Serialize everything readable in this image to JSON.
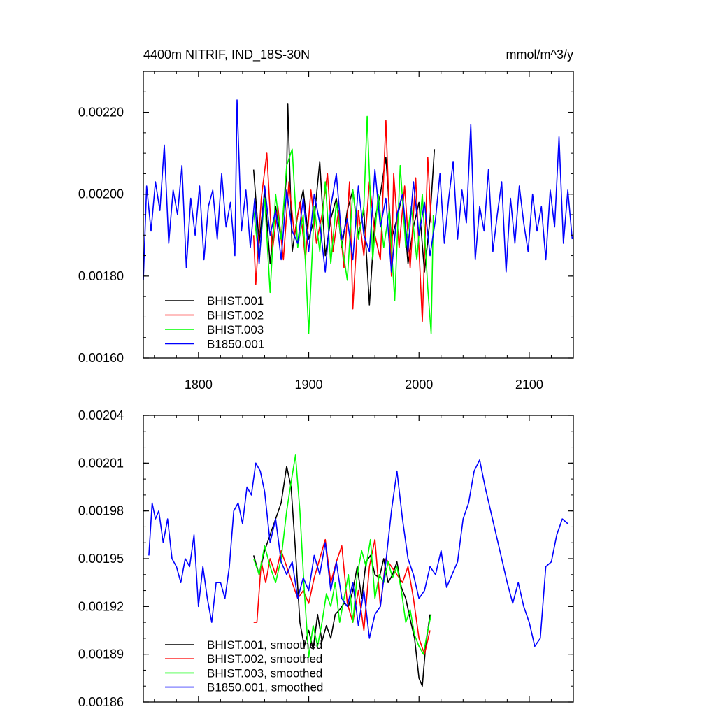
{
  "chart_data": [
    {
      "type": "line",
      "title": "4400m NITRIF, IND_18S-30N",
      "units": "mmol/m^3/y",
      "xlim": [
        1750,
        2140
      ],
      "ylim": [
        0.0016,
        0.0023
      ],
      "x_ticks": [
        "1800",
        "1900",
        "2000",
        "2100"
      ],
      "y_ticks": [
        "0.00160",
        "0.00180",
        "0.00200",
        "0.00220"
      ],
      "legend_position": "bottom-left",
      "series": [
        {
          "name": "BHIST.001",
          "color": "#000000",
          "x": [
            1850,
            1855,
            1860,
            1865,
            1870,
            1875,
            1880,
            1881,
            1885,
            1890,
            1895,
            1900,
            1905,
            1910,
            1915,
            1920,
            1925,
            1930,
            1935,
            1940,
            1945,
            1950,
            1955,
            1960,
            1965,
            1970,
            1975,
            1980,
            1985,
            1990,
            1995,
            2000,
            2005,
            2010,
            2014
          ],
          "y": [
            0.00206,
            0.00188,
            0.00201,
            0.00183,
            0.00197,
            0.00189,
            0.00205,
            0.00222,
            0.00186,
            0.00195,
            0.00201,
            0.00189,
            0.00194,
            0.00208,
            0.00185,
            0.00194,
            0.00199,
            0.00187,
            0.00196,
            0.00201,
            0.0019,
            0.00196,
            0.00173,
            0.00194,
            0.002,
            0.00209,
            0.00189,
            0.00194,
            0.002,
            0.00183,
            0.00192,
            0.00198,
            0.00181,
            0.00194,
            0.00211
          ]
        },
        {
          "name": "BHIST.002",
          "color": "#ff0000",
          "x": [
            1850,
            1852,
            1857,
            1862,
            1867,
            1872,
            1877,
            1882,
            1887,
            1892,
            1897,
            1902,
            1907,
            1912,
            1917,
            1922,
            1927,
            1932,
            1937,
            1940,
            1945,
            1950,
            1955,
            1960,
            1965,
            1970,
            1975,
            1977,
            1982,
            1987,
            1992,
            1997,
            2003,
            2008,
            2011
          ],
          "y": [
            0.0019,
            0.00178,
            0.00199,
            0.0021,
            0.00186,
            0.00197,
            0.00184,
            0.00203,
            0.0019,
            0.00198,
            0.00184,
            0.00201,
            0.00188,
            0.00195,
            0.00205,
            0.00186,
            0.00196,
            0.00182,
            0.00203,
            0.00172,
            0.00196,
            0.00185,
            0.00203,
            0.0019,
            0.00184,
            0.00218,
            0.0018,
            0.00205,
            0.00187,
            0.00202,
            0.00182,
            0.00204,
            0.00169,
            0.00209,
            0.00193
          ]
        },
        {
          "name": "BHIST.003",
          "color": "#00ff00",
          "x": [
            1850,
            1855,
            1860,
            1865,
            1870,
            1875,
            1880,
            1885,
            1890,
            1895,
            1900,
            1905,
            1910,
            1915,
            1920,
            1925,
            1930,
            1935,
            1940,
            1945,
            1950,
            1953,
            1958,
            1963,
            1968,
            1973,
            1978,
            1983,
            1988,
            1993,
            1998,
            2003,
            2008,
            2011,
            2013
          ],
          "y": [
            0.00196,
            0.00184,
            0.00199,
            0.00176,
            0.002,
            0.00189,
            0.00207,
            0.00211,
            0.00187,
            0.00195,
            0.00166,
            0.00197,
            0.00186,
            0.00203,
            0.00183,
            0.00198,
            0.00188,
            0.00179,
            0.00201,
            0.00189,
            0.00197,
            0.00219,
            0.00184,
            0.002,
            0.00187,
            0.00196,
            0.00174,
            0.00207,
            0.00187,
            0.00197,
            0.00184,
            0.002,
            0.00177,
            0.00166,
            0.00195
          ]
        },
        {
          "name": "B1850.001",
          "color": "#0000ff",
          "x": [
            1750,
            1753,
            1757,
            1761,
            1765,
            1769,
            1773,
            1777,
            1781,
            1785,
            1789,
            1793,
            1797,
            1801,
            1805,
            1809,
            1813,
            1817,
            1821,
            1825,
            1829,
            1833,
            1835,
            1839,
            1843,
            1847,
            1851,
            1855,
            1860,
            1865,
            1870,
            1875,
            1880,
            1885,
            1890,
            1895,
            1900,
            1905,
            1910,
            1915,
            1920,
            1925,
            1930,
            1935,
            1940,
            1945,
            1950,
            1955,
            1960,
            1965,
            1970,
            1975,
            1980,
            1985,
            1990,
            1995,
            2000,
            2005,
            2010,
            2015,
            2019,
            2023,
            2027,
            2031,
            2035,
            2039,
            2043,
            2047,
            2051,
            2055,
            2059,
            2063,
            2067,
            2071,
            2075,
            2079,
            2083,
            2087,
            2091,
            2095,
            2099,
            2103,
            2107,
            2111,
            2115,
            2119,
            2123,
            2127,
            2131,
            2135,
            2139
          ],
          "y": [
            0.00179,
            0.00202,
            0.00191,
            0.00203,
            0.00196,
            0.00212,
            0.00188,
            0.00201,
            0.00195,
            0.00207,
            0.00182,
            0.00199,
            0.0019,
            0.00202,
            0.00184,
            0.00197,
            0.00201,
            0.00189,
            0.00205,
            0.00192,
            0.00198,
            0.00185,
            0.00223,
            0.00191,
            0.00201,
            0.00187,
            0.00199,
            0.00183,
            0.00202,
            0.0019,
            0.00196,
            0.00184,
            0.00201,
            0.00191,
            0.00188,
            0.00199,
            0.00186,
            0.002,
            0.00193,
            0.00181,
            0.00197,
            0.00205,
            0.00189,
            0.00194,
            0.00184,
            0.00202,
            0.0019,
            0.00186,
            0.00206,
            0.00192,
            0.00199,
            0.00181,
            0.00195,
            0.002,
            0.00186,
            0.00203,
            0.0019,
            0.00198,
            0.00185,
            0.00194,
            0.00205,
            0.00188,
            0.00199,
            0.00208,
            0.00189,
            0.00201,
            0.00193,
            0.00217,
            0.00184,
            0.00197,
            0.00191,
            0.00206,
            0.00186,
            0.00195,
            0.00203,
            0.00181,
            0.00199,
            0.00188,
            0.00202,
            0.00193,
            0.00186,
            0.002,
            0.00191,
            0.00197,
            0.00184,
            0.00201,
            0.00192,
            0.00214,
            0.00188,
            0.00201,
            0.00189
          ]
        }
      ]
    },
    {
      "type": "line",
      "xlim": [
        1750,
        2140
      ],
      "ylim": [
        0.00186,
        0.00204
      ],
      "y_ticks": [
        "0.00186",
        "0.00189",
        "0.00192",
        "0.00195",
        "0.00198",
        "0.00201",
        "0.00204"
      ],
      "legend_position": "bottom-left",
      "series": [
        {
          "name": "BHIST.001, smoothed",
          "color": "#000000",
          "x": [
            1850,
            1855,
            1860,
            1865,
            1870,
            1875,
            1880,
            1884,
            1888,
            1892,
            1896,
            1900,
            1904,
            1908,
            1912,
            1916,
            1920,
            1924,
            1928,
            1932,
            1936,
            1940,
            1944,
            1948,
            1952,
            1956,
            1960,
            1964,
            1968,
            1972,
            1976,
            1980,
            1984,
            1988,
            1992,
            1996,
            2000,
            2003,
            2006,
            2010
          ],
          "y": [
            0.001952,
            0.00194,
            0.001955,
            0.001965,
            0.001975,
            0.001985,
            0.002008,
            0.001995,
            0.001955,
            0.00191,
            0.001895,
            0.001905,
            0.001893,
            0.001915,
            0.001898,
            0.001908,
            0.0019,
            0.001915,
            0.001918,
            0.001922,
            0.00192,
            0.00193,
            0.001945,
            0.001925,
            0.001948,
            0.001952,
            0.00194,
            0.001938,
            0.00195,
            0.001935,
            0.00194,
            0.001948,
            0.001932,
            0.001925,
            0.001912,
            0.0019,
            0.001875,
            0.00187,
            0.001895,
            0.001915
          ]
        },
        {
          "name": "BHIST.002, smoothed",
          "color": "#ff0000",
          "x": [
            1850,
            1853,
            1857,
            1861,
            1865,
            1870,
            1875,
            1880,
            1885,
            1890,
            1895,
            1900,
            1905,
            1910,
            1915,
            1920,
            1925,
            1930,
            1935,
            1940,
            1945,
            1950,
            1955,
            1960,
            1965,
            1970,
            1975,
            1980,
            1985,
            1990,
            1995,
            2000,
            2005,
            2010
          ],
          "y": [
            0.00191,
            0.00191,
            0.001948,
            0.001935,
            0.00195,
            0.00194,
            0.001955,
            0.001945,
            0.001935,
            0.001925,
            0.00193,
            0.001922,
            0.001938,
            0.00195,
            0.001962,
            0.001935,
            0.001948,
            0.001958,
            0.001922,
            0.00191,
            0.00193,
            0.001905,
            0.001945,
            0.001962,
            0.00192,
            0.00195,
            0.001945,
            0.00194,
            0.001935,
            0.001945,
            0.001925,
            0.0019,
            0.00189,
            0.001905
          ]
        },
        {
          "name": "BHIST.003, smoothed",
          "color": "#00ff00",
          "x": [
            1850,
            1855,
            1860,
            1865,
            1870,
            1875,
            1880,
            1884,
            1888,
            1892,
            1896,
            1900,
            1904,
            1908,
            1912,
            1916,
            1920,
            1924,
            1928,
            1932,
            1936,
            1940,
            1944,
            1948,
            1952,
            1956,
            1960,
            1964,
            1968,
            1972,
            1976,
            1980,
            1984,
            1988,
            1992,
            1996,
            2000,
            2004,
            2008,
            2011
          ],
          "y": [
            0.00195,
            0.00194,
            0.001958,
            0.001945,
            0.001935,
            0.00195,
            0.00198,
            0.001998,
            0.002015,
            0.00198,
            0.00193,
            0.001888,
            0.001908,
            0.001895,
            0.00191,
            0.001928,
            0.00192,
            0.001935,
            0.00191,
            0.001925,
            0.00194,
            0.00191,
            0.00194,
            0.001955,
            0.001945,
            0.001962,
            0.001925,
            0.00194,
            0.001935,
            0.001948,
            0.001938,
            0.001945,
            0.00193,
            0.00191,
            0.001918,
            0.001902,
            0.001895,
            0.00189,
            0.001905,
            0.001915
          ]
        },
        {
          "name": "B1850.001, smoothed",
          "color": "#0000ff",
          "x": [
            1755,
            1758,
            1761,
            1764,
            1768,
            1772,
            1776,
            1780,
            1784,
            1788,
            1792,
            1796,
            1800,
            1804,
            1808,
            1812,
            1816,
            1820,
            1824,
            1828,
            1832,
            1836,
            1840,
            1844,
            1848,
            1852,
            1856,
            1860,
            1865,
            1870,
            1875,
            1880,
            1885,
            1890,
            1895,
            1900,
            1905,
            1910,
            1915,
            1920,
            1925,
            1930,
            1935,
            1940,
            1945,
            1950,
            1955,
            1960,
            1965,
            1970,
            1975,
            1980,
            1985,
            1990,
            1995,
            2000,
            2005,
            2010,
            2015,
            2020,
            2025,
            2030,
            2035,
            2040,
            2045,
            2050,
            2055,
            2060,
            2065,
            2070,
            2075,
            2080,
            2085,
            2090,
            2095,
            2100,
            2105,
            2110,
            2115,
            2120,
            2125,
            2130,
            2135
          ],
          "y": [
            0.001952,
            0.001985,
            0.001975,
            0.00198,
            0.00196,
            0.001975,
            0.00195,
            0.001945,
            0.001935,
            0.00195,
            0.001945,
            0.001965,
            0.00192,
            0.001945,
            0.001925,
            0.00191,
            0.001935,
            0.001935,
            0.001925,
            0.001945,
            0.00198,
            0.001985,
            0.001972,
            0.001995,
            0.00199,
            0.00201,
            0.002005,
            0.001992,
            0.00196,
            0.001975,
            0.001948,
            0.00194,
            0.001948,
            0.001925,
            0.001938,
            0.00193,
            0.001952,
            0.00194,
            0.00196,
            0.00193,
            0.001948,
            0.001925,
            0.00192,
            0.001935,
            0.001908,
            0.00193,
            0.0019,
            0.001915,
            0.00192,
            0.001948,
            0.00198,
            0.002005,
            0.001975,
            0.00195,
            0.00194,
            0.001925,
            0.00193,
            0.001945,
            0.00194,
            0.001955,
            0.001932,
            0.00194,
            0.001948,
            0.001975,
            0.001985,
            0.002005,
            0.002012,
            0.001995,
            0.00198,
            0.001965,
            0.00195,
            0.001935,
            0.001922,
            0.001935,
            0.00192,
            0.00191,
            0.001895,
            0.0019,
            0.001945,
            0.001948,
            0.001965,
            0.001975,
            0.001972
          ]
        }
      ]
    }
  ]
}
